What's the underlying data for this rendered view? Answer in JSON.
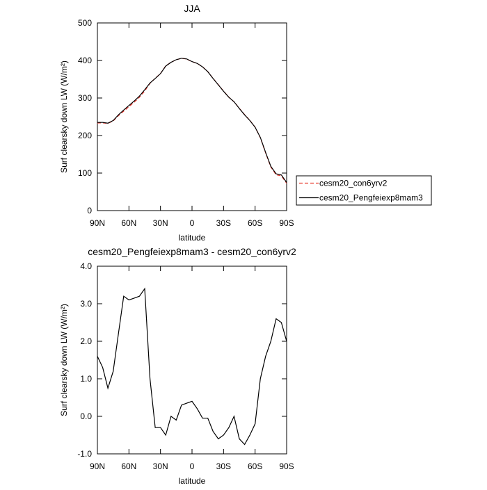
{
  "chart_data": [
    {
      "type": "line",
      "title": "JJA",
      "x_label": "latitude",
      "y_label": "Surf clearsky down LW (W/m²)",
      "x": [
        90,
        85,
        80,
        75,
        70,
        65,
        60,
        55,
        50,
        45,
        40,
        35,
        30,
        25,
        20,
        15,
        10,
        5,
        0,
        -5,
        -10,
        -15,
        -20,
        -25,
        -30,
        -35,
        -40,
        -45,
        -50,
        -55,
        -60,
        -65,
        -70,
        -75,
        -80,
        -85,
        -90
      ],
      "series": [
        {
          "name": "cesm20_con6yrv2",
          "color": "#e8392f",
          "linestyle": "dashed",
          "values": [
            233.4,
            233.7,
            232.3,
            238.8,
            252.8,
            264.8,
            276.9,
            288.9,
            301.8,
            318.6,
            339,
            352.3,
            365.3,
            385.5,
            395,
            402.1,
            405.7,
            403.7,
            396.6,
            391.8,
            383.1,
            370.1,
            352.4,
            335.6,
            318.5,
            302.3,
            290,
            272.6,
            255.8,
            240.5,
            222.2,
            194,
            153.4,
            116,
            95.4,
            92.5,
            73
          ]
        },
        {
          "name": "cesm20_Pengfeiexp8mam3",
          "color": "#000000",
          "linestyle": "solid",
          "values": [
            235,
            235,
            233,
            240,
            255,
            268,
            280,
            292,
            305,
            322,
            340,
            352,
            365,
            385,
            395,
            402,
            406,
            404,
            397,
            392,
            383,
            370,
            352,
            335,
            318,
            302,
            290,
            272,
            255,
            240,
            222,
            195,
            155,
            118,
            98,
            95,
            75
          ]
        }
      ],
      "xlim": [
        90,
        -90
      ],
      "xticks": [
        {
          "value": 90,
          "label": "90N"
        },
        {
          "value": 60,
          "label": "60N"
        },
        {
          "value": 30,
          "label": "30N"
        },
        0,
        {
          "value": -30,
          "label": "30S"
        },
        {
          "value": -60,
          "label": "60S"
        },
        {
          "value": -90,
          "label": "90S"
        }
      ],
      "ylim": [
        0,
        500
      ],
      "yticks": [
        0,
        100,
        200,
        300,
        400,
        500
      ],
      "legend": "right"
    },
    {
      "type": "line",
      "title": "cesm20_Pengfeiexp8mam3 - cesm20_con6yrv2",
      "x_label": "latitude",
      "y_label": "Surf clearsky down LW (W/m²)",
      "x": [
        90,
        85,
        80,
        75,
        70,
        65,
        60,
        55,
        50,
        45,
        40,
        35,
        30,
        25,
        20,
        15,
        10,
        5,
        0,
        -5,
        -10,
        -15,
        -20,
        -25,
        -30,
        -35,
        -40,
        -45,
        -50,
        -55,
        -60,
        -65,
        -70,
        -75,
        -80,
        -85,
        -90
      ],
      "series": [
        {
          "color": "#000000",
          "linestyle": "solid",
          "values": [
            1.6,
            1.3,
            0.75,
            1.2,
            2.2,
            3.2,
            3.1,
            3.15,
            3.2,
            3.4,
            1.0,
            -0.3,
            -0.3,
            -0.5,
            0.0,
            -0.1,
            0.3,
            0.35,
            0.4,
            0.2,
            -0.05,
            -0.05,
            -0.4,
            -0.6,
            -0.5,
            -0.3,
            0.0,
            -0.6,
            -0.75,
            -0.5,
            -0.2,
            1.0,
            1.6,
            2.0,
            2.6,
            2.5,
            2.0
          ]
        }
      ],
      "xlim": [
        90,
        -90
      ],
      "xticks": [
        {
          "value": 90,
          "label": "90N"
        },
        {
          "value": 60,
          "label": "60N"
        },
        {
          "value": 30,
          "label": "30N"
        },
        0,
        {
          "value": -30,
          "label": "30S"
        },
        {
          "value": -60,
          "label": "60S"
        },
        {
          "value": -90,
          "label": "90S"
        }
      ],
      "ylim": [
        -1,
        4
      ],
      "yticks": [
        {
          "value": -1,
          "label": "-1.0"
        },
        {
          "value": 0,
          "label": "0.0"
        },
        {
          "value": 1,
          "label": "1.0"
        },
        {
          "value": 2,
          "label": "2.0"
        },
        {
          "value": 3,
          "label": "3.0"
        },
        {
          "value": 4,
          "label": "4.0"
        }
      ]
    }
  ]
}
